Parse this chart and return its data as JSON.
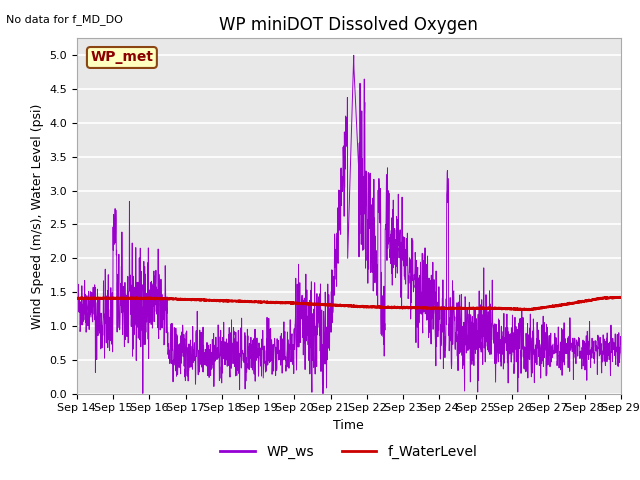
{
  "title": "WP miniDOT Dissolved Oxygen",
  "top_left_text": "No data for f_MD_DO",
  "xlabel": "Time",
  "ylabel": "Wind Speed (m/s), Water Level (psi)",
  "ylim": [
    0.0,
    5.25
  ],
  "yticks": [
    0.0,
    0.5,
    1.0,
    1.5,
    2.0,
    2.5,
    3.0,
    3.5,
    4.0,
    4.5,
    5.0
  ],
  "xtick_labels": [
    "Sep 14",
    "Sep 15",
    "Sep 16",
    "Sep 17",
    "Sep 18",
    "Sep 19",
    "Sep 20",
    "Sep 21",
    "Sep 22",
    "Sep 23",
    "Sep 24",
    "Sep 25",
    "Sep 26",
    "Sep 27",
    "Sep 28",
    "Sep 29"
  ],
  "legend_entries": [
    "WP_ws",
    "f_WaterLevel"
  ],
  "legend_colors": [
    "#9400D3",
    "#CC0000"
  ],
  "inset_label": "WP_met",
  "inset_bg": "#FFFFC0",
  "inset_border": "#8B4513",
  "wp_ws_color": "#9900CC",
  "f_wl_color": "#CC0000",
  "fig_bg_color": "#FFFFFF",
  "plot_bg_color": "#E8E8E8",
  "grid_color": "#FFFFFF",
  "title_fontsize": 12,
  "label_fontsize": 9,
  "tick_fontsize": 8,
  "legend_fontsize": 10
}
